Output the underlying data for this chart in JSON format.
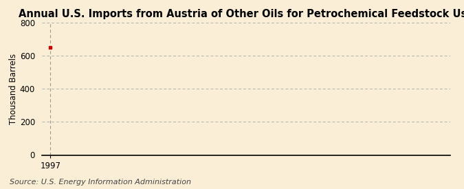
{
  "title": "Annual U.S. Imports from Austria of Other Oils for Petrochemical Feedstock Use",
  "ylabel": "Thousand Barrels",
  "source": "Source: U.S. Energy Information Administration",
  "x_data": [
    1997
  ],
  "y_data": [
    649
  ],
  "xlim": [
    1996.5,
    2020
  ],
  "ylim": [
    0,
    800
  ],
  "yticks": [
    0,
    200,
    400,
    600,
    800
  ],
  "xticks": [
    1997
  ],
  "background_color": "#faefd6",
  "plot_bg_color": "#faefd6",
  "marker_color": "#cc0000",
  "marker": "s",
  "marker_size": 3.5,
  "grid_color": "#b0b0b0",
  "vline_color": "#999999",
  "title_fontsize": 10.5,
  "axis_fontsize": 8.5,
  "tick_fontsize": 8.5,
  "source_fontsize": 8
}
